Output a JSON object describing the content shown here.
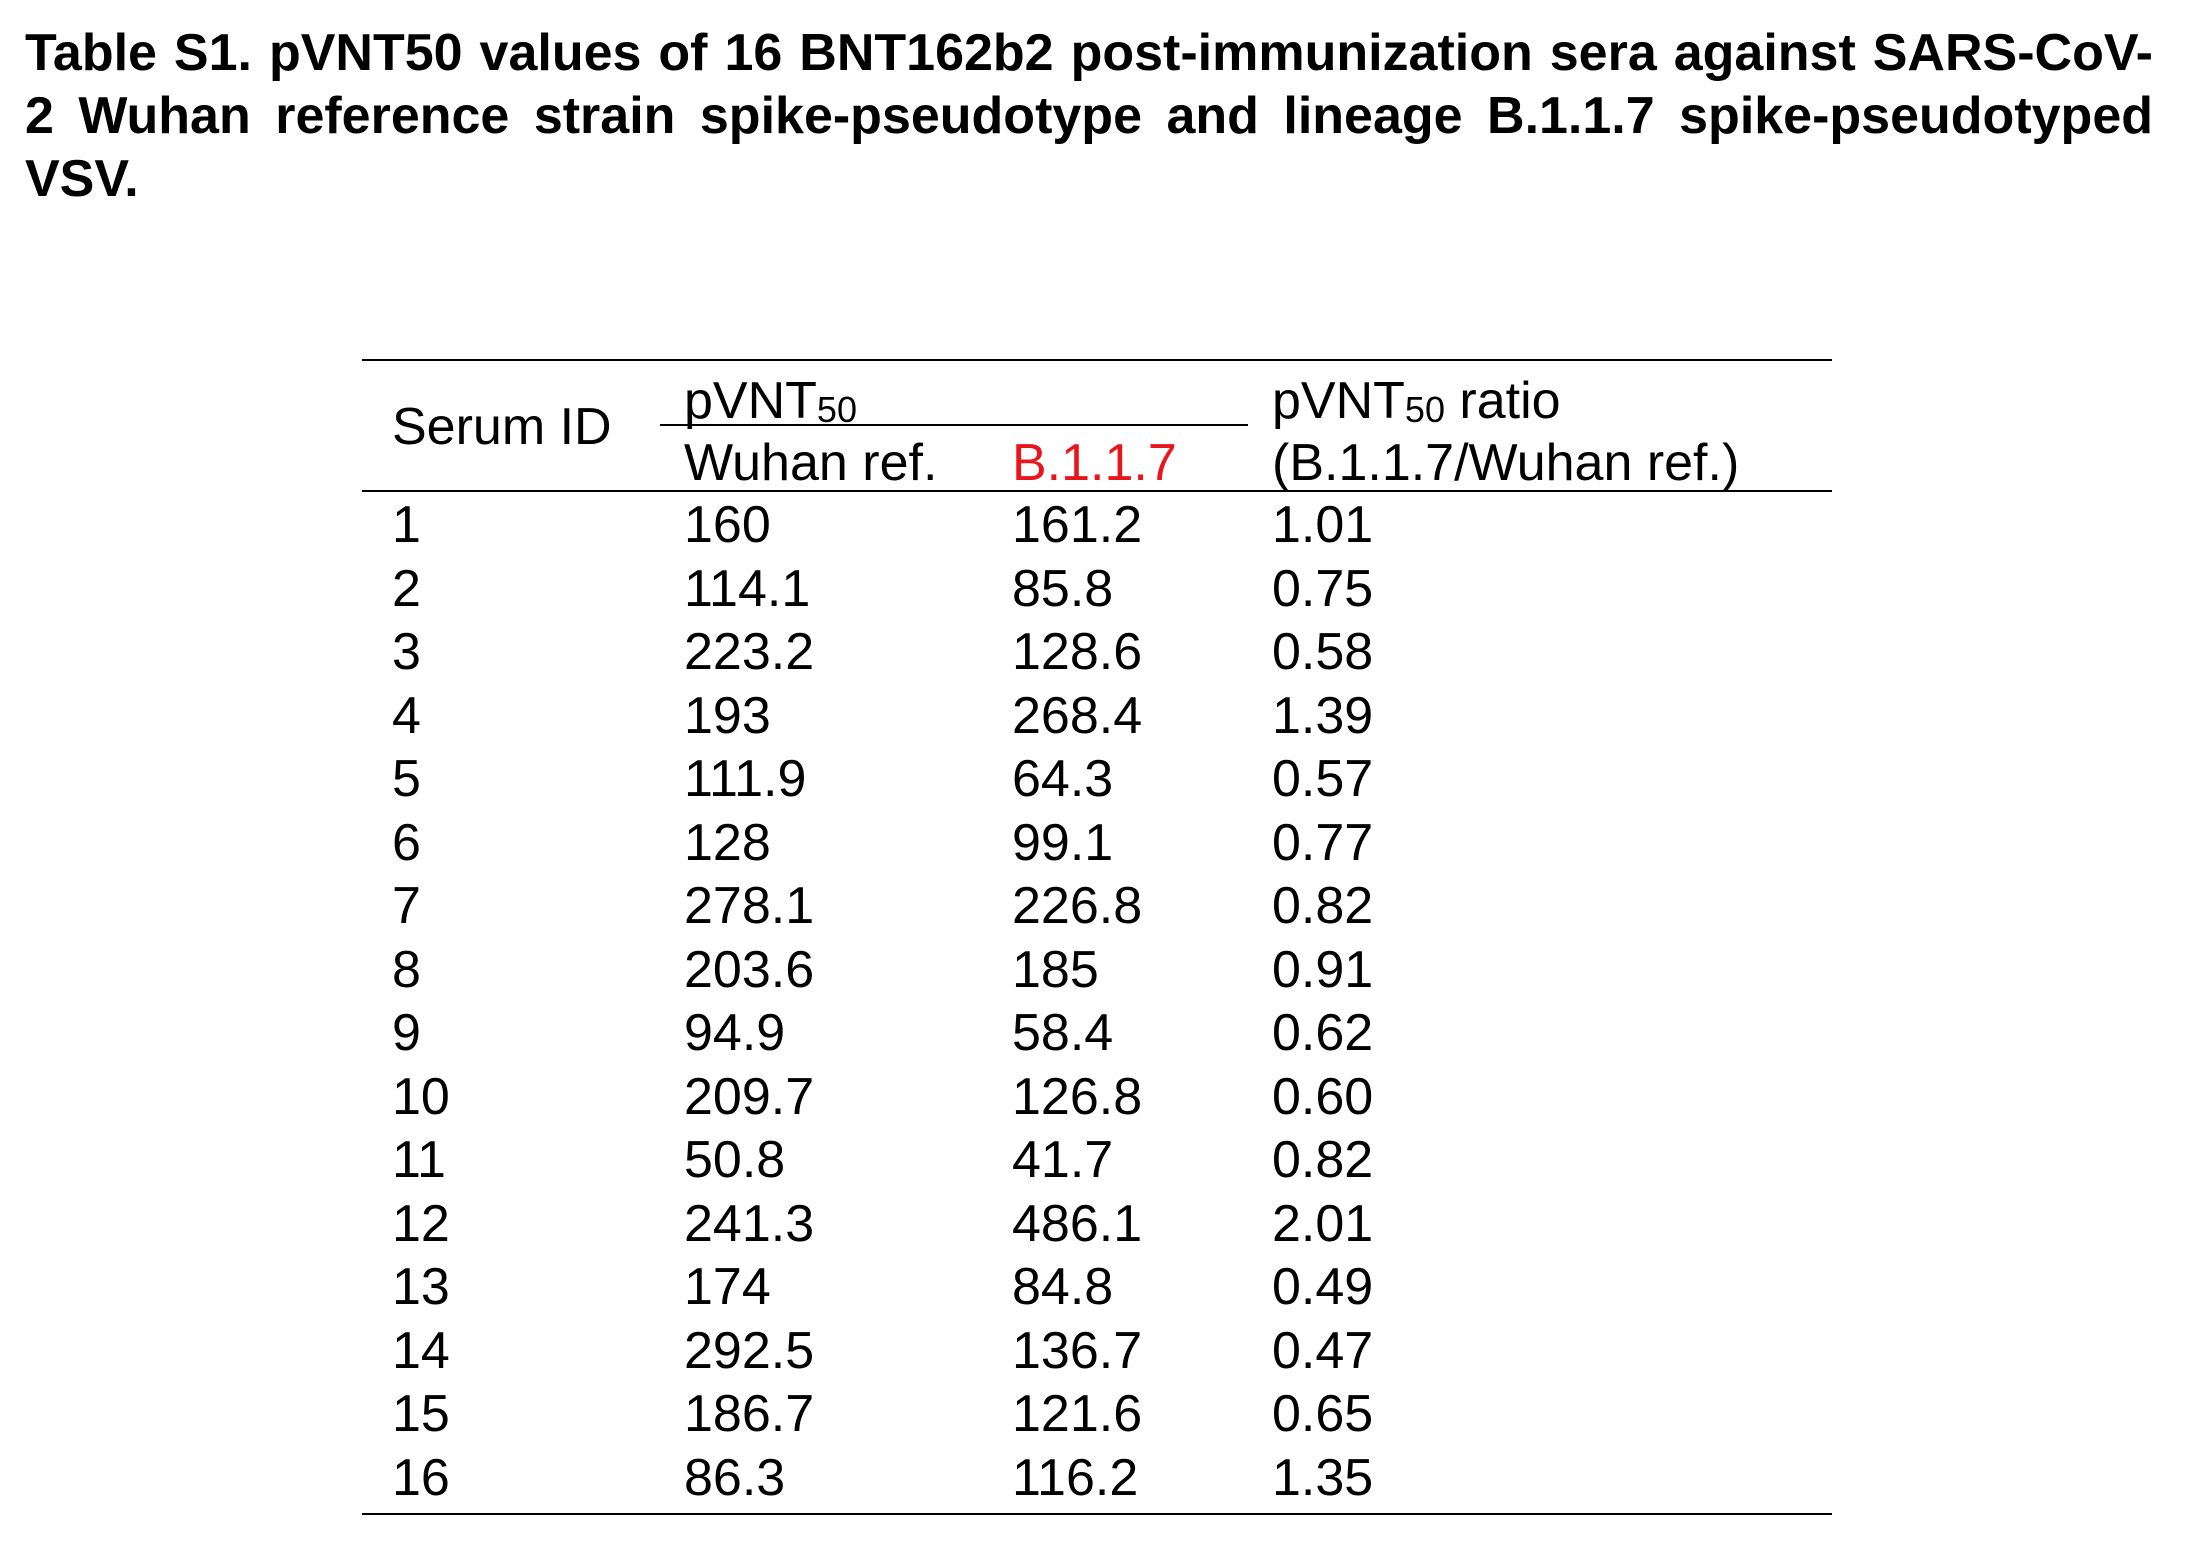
{
  "caption": "Table S1. pVNT50 values of 16 BNT162b2 post-immunization sera against SARS-CoV-2 Wuhan reference strain spike-pseudotype and lineage B.1.1.7 spike-pseudotyped VSV.",
  "header": {
    "serum_id": "Serum ID",
    "pvnt_main": "pVNT",
    "pvnt_sub": "50",
    "wuhan": "Wuhan ref.",
    "b117": "B.1.1.7",
    "ratio_main": "pVNT",
    "ratio_sub": "50",
    "ratio_suffix": " ratio",
    "ratio_line2": "(B.1.1.7/Wuhan ref.)"
  },
  "colors": {
    "b117_header": "#e8161c"
  },
  "rows": [
    {
      "id": "1",
      "wuhan": "160",
      "b117": "161.2",
      "ratio": "1.01"
    },
    {
      "id": "2",
      "wuhan": "114.1",
      "b117": "85.8",
      "ratio": "0.75"
    },
    {
      "id": "3",
      "wuhan": "223.2",
      "b117": "128.6",
      "ratio": "0.58"
    },
    {
      "id": "4",
      "wuhan": "193",
      "b117": "268.4",
      "ratio": "1.39"
    },
    {
      "id": "5",
      "wuhan": "111.9",
      "b117": "64.3",
      "ratio": "0.57"
    },
    {
      "id": "6",
      "wuhan": "128",
      "b117": "99.1",
      "ratio": "0.77"
    },
    {
      "id": "7",
      "wuhan": "278.1",
      "b117": "226.8",
      "ratio": "0.82"
    },
    {
      "id": "8",
      "wuhan": "203.6",
      "b117": "185",
      "ratio": "0.91"
    },
    {
      "id": "9",
      "wuhan": "94.9",
      "b117": "58.4",
      "ratio": "0.62"
    },
    {
      "id": "10",
      "wuhan": "209.7",
      "b117": "126.8",
      "ratio": "0.60"
    },
    {
      "id": "11",
      "wuhan": "50.8",
      "b117": "41.7",
      "ratio": "0.82"
    },
    {
      "id": "12",
      "wuhan": "241.3",
      "b117": "486.1",
      "ratio": "2.01"
    },
    {
      "id": "13",
      "wuhan": "174",
      "b117": "84.8",
      "ratio": "0.49"
    },
    {
      "id": "14",
      "wuhan": "292.5",
      "b117": "136.7",
      "ratio": "0.47"
    },
    {
      "id": "15",
      "wuhan": "186.7",
      "b117": "121.6",
      "ratio": "0.65"
    },
    {
      "id": "16",
      "wuhan": "86.3",
      "b117": "116.2",
      "ratio": "1.35"
    }
  ]
}
